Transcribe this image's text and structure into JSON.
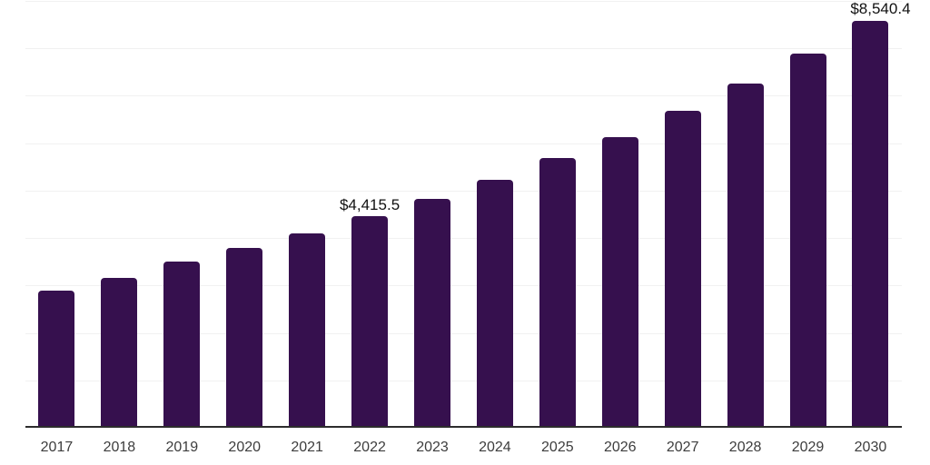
{
  "chart_data": {
    "type": "bar",
    "title": "",
    "xlabel": "",
    "ylabel": "",
    "categories": [
      "2017",
      "2018",
      "2019",
      "2020",
      "2021",
      "2022",
      "2023",
      "2024",
      "2025",
      "2026",
      "2027",
      "2028",
      "2029",
      "2030"
    ],
    "values": [
      2850,
      3125,
      3465,
      3755,
      4060,
      4415.5,
      4790,
      5190,
      5650,
      6090,
      6645,
      7220,
      7850,
      8540.4
    ],
    "data_labels": [
      "",
      "",
      "",
      "",
      "",
      "$4,415.5",
      "",
      "",
      "",
      "",
      "",
      "",
      "",
      "$8,540.4"
    ],
    "ylim": [
      0,
      9000
    ],
    "gridline_interval": 1000,
    "grid": "horizontal-only",
    "legend": "none",
    "y_axis_tick_labels": "none",
    "colors": {
      "bar": "#36104E",
      "axis_line": "#2d2d2d",
      "gridline": "#f1f1f1",
      "data_label_text": "#111111",
      "x_tick_label_text": "#3d3d3d",
      "background": "#ffffff"
    }
  }
}
